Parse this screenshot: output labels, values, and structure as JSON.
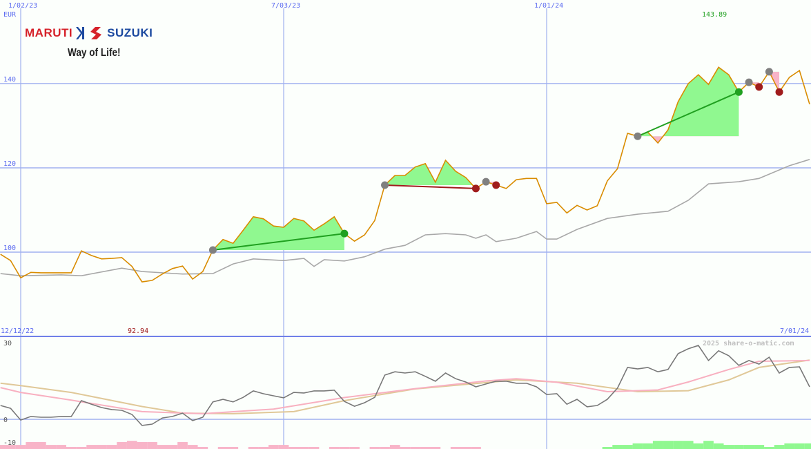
{
  "chart_data": [
    {
      "type": "line",
      "panel": "price",
      "unit_label": "EUR",
      "x_tick_labels": [
        "1/02/23",
        "7/03/23",
        "1/01/24"
      ],
      "y_ticks": [
        100,
        120,
        140
      ],
      "ylim": [
        88,
        160
      ],
      "grid": true,
      "max_label": "143.89",
      "min_label": "92.94",
      "dates": [
        "12/19/22",
        "12/26/22",
        "1/02/23",
        "1/09/23",
        "1/16/23",
        "1/23/23",
        "1/30/23",
        "2/06/23",
        "2/13/23",
        "2/20/23",
        "2/27/23",
        "3/06/23",
        "3/13/23",
        "3/20/23",
        "3/27/23",
        "4/03/23",
        "4/10/23",
        "4/17/23",
        "4/24/23",
        "5/01/23",
        "5/08/23",
        "5/15/23",
        "5/22/23",
        "5/29/23",
        "6/05/23",
        "6/12/23",
        "6/19/23",
        "6/26/23",
        "7/03/23",
        "7/10/23",
        "7/17/23",
        "7/24/23",
        "7/31/23",
        "8/07/23",
        "8/14/23",
        "8/21/23",
        "8/28/23",
        "9/04/23",
        "9/11/23",
        "9/18/23",
        "9/25/23",
        "10/02/23",
        "10/09/23",
        "10/16/23",
        "10/23/23",
        "10/30/23",
        "11/06/23",
        "11/13/23",
        "11/20/23",
        "11/27/23",
        "12/04/23",
        "12/11/23",
        "12/18/23",
        "12/25/23",
        "1/01/24",
        "1/08/24",
        "1/15/24",
        "1/22/24",
        "1/29/24",
        "2/05/24",
        "2/12/24",
        "2/19/24",
        "2/26/24",
        "3/04/24",
        "3/11/24",
        "3/18/24",
        "3/25/24",
        "4/01/24",
        "4/08/24",
        "4/15/24",
        "4/22/24",
        "4/29/24",
        "5/06/24",
        "5/13/24",
        "5/20/24",
        "5/27/24",
        "6/03/24",
        "6/10/24",
        "6/17/24",
        "6/24/24",
        "7/01/24"
      ],
      "price": [
        99.5,
        98.0,
        93.9,
        95.2,
        95.1,
        95.1,
        95.1,
        95.1,
        100.3,
        99.2,
        98.4,
        98.5,
        98.7,
        96.6,
        92.94,
        93.3,
        94.8,
        96.1,
        96.7,
        93.6,
        95.4,
        100.5,
        103.0,
        102.1,
        105.2,
        108.4,
        107.9,
        106.2,
        105.9,
        108.0,
        107.4,
        105.2,
        106.7,
        108.4,
        104.4,
        102.6,
        104.1,
        107.5,
        115.9,
        118.2,
        118.2,
        120.2,
        121.0,
        116.6,
        121.8,
        119.2,
        117.7,
        115.1,
        116.7,
        115.9,
        115.1,
        117.2,
        117.5,
        117.5,
        111.5,
        111.8,
        109.3,
        111.1,
        110.0,
        111.0,
        116.9,
        119.8,
        128.2,
        127.5,
        128.5,
        125.9,
        129.0,
        135.7,
        140.0,
        142.1,
        139.8,
        143.89,
        142.1,
        138.0,
        140.3,
        139.2,
        142.8,
        138.0,
        141.5,
        143.1,
        135.1
      ],
      "benchmark": [
        [
          "12/19/22",
          94.9
        ],
        [
          "1/02/23",
          94.4
        ],
        [
          "1/30/23",
          94.6
        ],
        [
          "2/13/23",
          94.4
        ],
        [
          "3/13/23",
          96.2
        ],
        [
          "3/27/23",
          95.4
        ],
        [
          "4/24/23",
          94.8
        ],
        [
          "5/15/23",
          94.9
        ],
        [
          "5/29/23",
          97.2
        ],
        [
          "6/12/23",
          98.4
        ],
        [
          "7/03/23",
          98.0
        ],
        [
          "7/17/23",
          98.5
        ],
        [
          "7/24/23",
          96.6
        ],
        [
          "7/31/23",
          98.2
        ],
        [
          "8/14/23",
          97.9
        ],
        [
          "8/28/23",
          98.9
        ],
        [
          "9/11/23",
          100.7
        ],
        [
          "9/25/23",
          101.6
        ],
        [
          "10/09/23",
          104.1
        ],
        [
          "10/23/23",
          104.4
        ],
        [
          "11/06/23",
          104.1
        ],
        [
          "11/13/23",
          103.3
        ],
        [
          "11/20/23",
          104.1
        ],
        [
          "11/27/23",
          102.5
        ],
        [
          "12/11/23",
          103.3
        ],
        [
          "12/25/23",
          104.9
        ],
        [
          "1/01/24",
          103.1
        ],
        [
          "1/08/24",
          103.1
        ],
        [
          "1/22/24",
          105.4
        ],
        [
          "2/12/24",
          108.0
        ],
        [
          "3/04/24",
          109.0
        ],
        [
          "3/25/24",
          109.7
        ],
        [
          "4/08/24",
          112.3
        ],
        [
          "4/22/24",
          116.2
        ],
        [
          "5/13/24",
          116.7
        ],
        [
          "5/27/24",
          117.5
        ],
        [
          "6/17/24",
          120.5
        ],
        [
          "7/01/24",
          122.0
        ]
      ],
      "trades": [
        {
          "entry": "5/15/23",
          "exit": "8/14/23",
          "result": "gain"
        },
        {
          "entry": "9/11/23",
          "exit": "11/13/23",
          "result": "loss"
        },
        {
          "entry": "11/20/23",
          "exit": "11/27/23",
          "result": "loss"
        },
        {
          "entry": "3/04/24",
          "exit": "5/13/24",
          "result": "gain"
        },
        {
          "entry": "5/20/24",
          "exit": "5/27/24",
          "result": "loss"
        },
        {
          "entry": "6/03/24",
          "exit": "6/10/24",
          "result": "loss"
        }
      ],
      "colors": {
        "price": "#d98c00",
        "benchmark": "#a8a8a8",
        "gain_fill": "#90f890",
        "loss_fill": "#f8b4c8",
        "gain_line": "#20a020",
        "loss_line": "#a01c1c",
        "entry_marker": "#808080",
        "grid": "#a0b0f0",
        "axis_text": "#5a6af0"
      }
    },
    {
      "type": "line",
      "panel": "indicator",
      "start_label": "12/12/22",
      "end_label": "7/01/24",
      "y_ticks": [
        -10,
        0,
        30
      ],
      "ylim": [
        -11.5,
        32.4
      ],
      "momentum": [
        5.4,
        4.3,
        -0.3,
        1.1,
        0.8,
        0.8,
        1.1,
        1.1,
        7.3,
        5.9,
        4.6,
        3.8,
        3.5,
        1.9,
        -2.4,
        -1.9,
        0.5,
        1.1,
        2.4,
        -0.5,
        0.8,
        6.8,
        7.8,
        6.8,
        8.6,
        11.1,
        10.0,
        9.2,
        8.4,
        10.5,
        10.3,
        11.1,
        11.1,
        11.4,
        7.0,
        5.1,
        6.5,
        8.6,
        17.3,
        18.6,
        18.1,
        18.6,
        16.8,
        14.9,
        18.1,
        15.9,
        14.6,
        12.7,
        13.8,
        14.9,
        14.9,
        14.1,
        14.1,
        12.7,
        9.7,
        10.0,
        5.9,
        7.8,
        4.9,
        5.4,
        7.8,
        12.2,
        20.3,
        19.7,
        20.3,
        18.6,
        19.5,
        25.7,
        27.6,
        28.9,
        23.0,
        26.8,
        24.9,
        21.1,
        23.0,
        21.6,
        24.3,
        18.1,
        20.3,
        20.5,
        12.7
      ],
      "ma_fast": [
        [
          "12/19/22",
          12.4
        ],
        [
          "1/02/23",
          10.5
        ],
        [
          "2/06/23",
          7.5
        ],
        [
          "3/27/23",
          3.0
        ],
        [
          "5/08/23",
          2.2
        ],
        [
          "6/26/23",
          4.0
        ],
        [
          "8/14/23",
          8.5
        ],
        [
          "10/02/23",
          12.0
        ],
        [
          "11/20/23",
          15.0
        ],
        [
          "12/11/23",
          15.9
        ],
        [
          "1/08/24",
          14.5
        ],
        [
          "2/12/24",
          10.8
        ],
        [
          "3/18/24",
          11.5
        ],
        [
          "4/08/24",
          14.6
        ],
        [
          "5/06/24",
          19.5
        ],
        [
          "5/27/24",
          22.7
        ],
        [
          "7/01/24",
          23.0
        ]
      ],
      "ma_slow": [
        [
          "12/19/22",
          14.1
        ],
        [
          "1/02/23",
          13.2
        ],
        [
          "2/06/23",
          10.5
        ],
        [
          "3/27/23",
          5.0
        ],
        [
          "4/24/23",
          2.4
        ],
        [
          "5/29/23",
          2.2
        ],
        [
          "7/10/23",
          3.0
        ],
        [
          "8/14/23",
          7.3
        ],
        [
          "10/02/23",
          11.9
        ],
        [
          "12/11/23",
          15.4
        ],
        [
          "1/22/24",
          14.1
        ],
        [
          "3/04/24",
          10.8
        ],
        [
          "4/08/24",
          11.2
        ],
        [
          "5/06/24",
          15.4
        ],
        [
          "5/27/24",
          20.3
        ],
        [
          "7/01/24",
          23.2
        ]
      ],
      "histogram": [
        -1.6,
        -1.6,
        -1.6,
        -2.7,
        -2.7,
        -1.6,
        -1.6,
        -0.8,
        -0.8,
        -1.6,
        -1.6,
        -1.6,
        -2.7,
        -3.2,
        -2.7,
        -2.7,
        -1.6,
        -1.6,
        -2.7,
        -1.6,
        -0.8,
        0,
        -0.8,
        -0.8,
        0,
        -0.8,
        -0.8,
        -1.6,
        -1.6,
        -0.8,
        -0.8,
        -0.8,
        0,
        -0.8,
        -0.8,
        -0.8,
        0,
        -0.8,
        -0.8,
        -1.6,
        -0.8,
        -0.8,
        -0.8,
        -0.8,
        0,
        -0.8,
        -0.8,
        -0.8,
        0,
        0,
        0,
        0,
        0,
        0,
        0,
        0,
        0,
        0,
        0,
        0,
        0.8,
        1.6,
        1.6,
        2.2,
        2.2,
        3.2,
        3.2,
        3.2,
        3.2,
        2.2,
        3.2,
        2.2,
        1.6,
        1.6,
        1.6,
        1.6,
        0.8,
        1.6,
        2.2,
        2.2,
        2.2
      ],
      "colors": {
        "momentum": "#787878",
        "ma_fast": "#f8b0c0",
        "ma_slow": "#e0c898",
        "hist_pos": "#90f890",
        "hist_neg": "#f8b4c8"
      }
    }
  ],
  "logo": {
    "brand_left": "MARUTI",
    "brand_right": "SUZUKI",
    "tagline": "Way of Life!"
  },
  "watermark": "2025 share-o-matic.com"
}
